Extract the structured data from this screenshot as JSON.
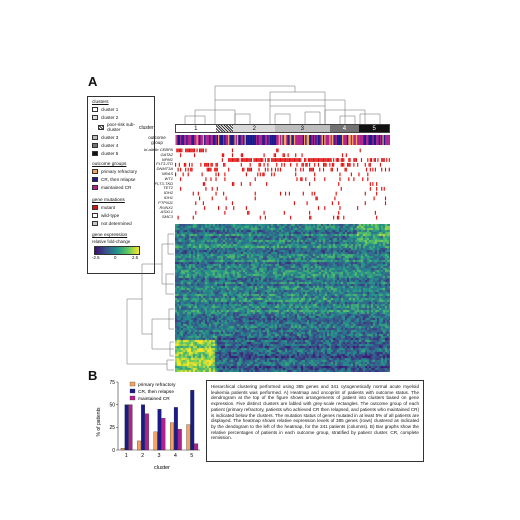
{
  "panels": {
    "a": "A",
    "b": "B"
  },
  "legend": {
    "clusters_title": "clusters",
    "clusters": [
      {
        "label": "cluster 1",
        "color": "#ffffff"
      },
      {
        "label": "cluster 2",
        "color": "#d9d9d9"
      },
      {
        "label": "poor-risk sub-cluster",
        "color": "#9a9a9a"
      },
      {
        "label": "cluster 3",
        "color": "#bdbdbd"
      },
      {
        "label": "cluster 4",
        "color": "#737373"
      },
      {
        "label": "cluster 5",
        "color": "#111111"
      }
    ],
    "outcome_title": "outcome groups",
    "outcomes": [
      {
        "label": "primary refractory",
        "color": "#f4a460"
      },
      {
        "label": "CR, then relapse",
        "color": "#1a1a8c"
      },
      {
        "label": "maintained CR",
        "color": "#b0238c"
      }
    ],
    "mutation_title": "gene mutations",
    "mutations": [
      {
        "label": "mutant",
        "color": "#e01010"
      },
      {
        "label": "wild-type",
        "color": "#ffffff"
      },
      {
        "label": "not determined",
        "color": "#c8c8c8"
      }
    ],
    "expression_title": "gene expression",
    "expression_subtitle": "relative fold-change",
    "expression_ticks": [
      "-2.5",
      "0",
      "2.5"
    ]
  },
  "heatmap_header": {
    "cluster_row_label": "cluster",
    "outcome_row_label": "outcome group",
    "cluster_numbers": [
      "1",
      "2",
      "3",
      "4",
      "5"
    ]
  },
  "genes": [
    "bi-allelic CEBPA",
    "GATA2",
    "NPM1",
    "FLT3-ITD",
    "DNMT3A",
    "NRAS",
    "WT1",
    "FLT3-TKD",
    "TET2",
    "IDH2",
    "IDH1",
    "PTPN11",
    "RUNX1",
    "ASXL1",
    "SMC3"
  ],
  "colors": {
    "primary_refractory": "#f4a460",
    "cr_relapse": "#1a1a8c",
    "maintained_cr": "#b0238c",
    "mutant": "#e01010"
  },
  "chart_data": {
    "type": "bar",
    "categories": [
      "1",
      "2",
      "3",
      "4",
      "5"
    ],
    "series": [
      {
        "name": "primary refractory",
        "values": [
          2,
          10,
          20,
          30,
          28
        ]
      },
      {
        "name": "CR, then relapse",
        "values": [
          50,
          50,
          45,
          47,
          66
        ]
      },
      {
        "name": "maintained CR",
        "values": [
          50,
          40,
          35,
          23,
          7
        ]
      }
    ],
    "xlabel": "cluster",
    "ylabel": "% of patients",
    "ylim": [
      0,
      75
    ],
    "yticks": [
      "0",
      "25",
      "50",
      "75"
    ]
  },
  "caption": "Hierarchical clustering performed using 385 genes and 341 cytogenetically normal acute myeloid leukemia patients was performed. A) Heatmap and oncoprint of patients with outcome status. The dendrogram at the top of the figure shows arrangements of patient into clusters based on gene expression. Five distinct clusters are labled with grey-scale rectangles. The outcome group of each patient (primary refractory, patients who achieved CR then relapsed, and patients who maintained CR) is indicated below the clusters. The mutation status of genes mutated in at least 5% of all patients are displayed. The heatmap shows relative expression levels of 385 genes (rows) clustered as indicated by the dendogram to the left of the heatmap, for the 341 patients (columns). B) Bar graphs show the relative percentages of patients in each outcome group, stratified by patient cluster. CR, complete remission."
}
